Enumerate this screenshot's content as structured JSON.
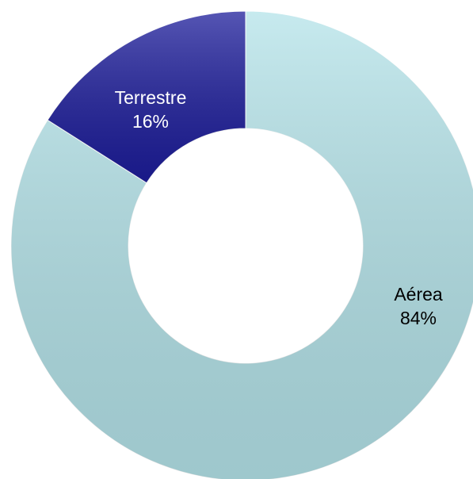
{
  "chart_data": {
    "type": "donut",
    "categories": [
      "Aérea",
      "Terrestre"
    ],
    "values": [
      84,
      16
    ],
    "value_labels": [
      "84%",
      "16%"
    ],
    "colors": [
      "#b4e3e9",
      "#1d1d9b"
    ],
    "label_colors": [
      "#000000",
      "#ffffff"
    ]
  }
}
